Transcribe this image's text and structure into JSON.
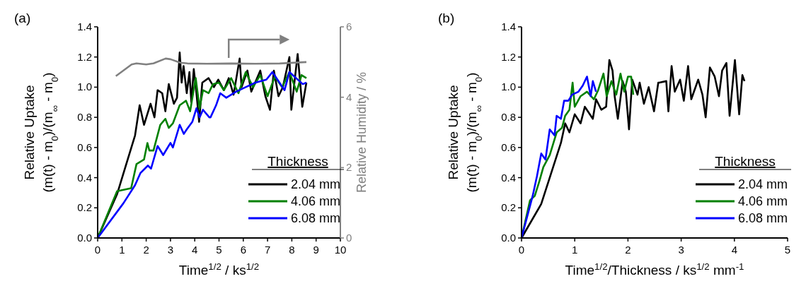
{
  "chart_data": [
    {
      "type": "line",
      "xlabel": "Time$^{1/2}$  /  ks$^{1/2}$",
      "ylabel": "Relative Uptake\n(m(t) - m$_{0}$)/(m$_{∞}$ - m$_{0}$)",
      "y2label": "Relative Humidity / %",
      "legend_title": "Thickness",
      "legend": "bottom right",
      "annotations": [
        "(a)"
      ],
      "xlim": [
        0,
        10
      ],
      "xticks": [
        0,
        1,
        2,
        3,
        4,
        5,
        6,
        7,
        8,
        9,
        10
      ],
      "ylim": [
        0,
        1.4
      ],
      "yticks": [
        {
          "value": 0,
          "label": "0.0"
        },
        {
          "value": 0.2,
          "label": "0.2"
        },
        {
          "value": 0.4,
          "label": "0.4"
        },
        {
          "value": 0.6,
          "label": "0.6"
        },
        {
          "value": 0.8,
          "label": "0.8"
        },
        {
          "value": 1,
          "label": "1.0"
        },
        {
          "value": 1.2,
          "label": "1.2"
        },
        {
          "value": 1.4,
          "label": "1.4"
        }
      ],
      "y2lim": [
        0,
        6
      ],
      "y2ticks": [
        0,
        2,
        4,
        6
      ],
      "series": [
        {
          "name": "2.04 mm",
          "color": "#000000",
          "x": [
            0,
            0.8,
            1.54,
            1.73,
            1.91,
            2.18,
            2.34,
            2.47,
            2.66,
            2.79,
            2.93,
            3.14,
            3.27,
            3.38,
            3.46,
            3.54,
            3.67,
            3.78,
            3.86,
            3.96,
            4.07,
            4.18,
            4.31,
            4.57,
            4.79,
            4.97,
            5.2,
            5.4,
            5.6,
            5.85,
            5.93,
            6.17,
            6.33,
            6.7,
            6.91,
            7.1,
            7.26,
            7.45,
            7.63,
            7.9,
            7.98,
            8.24,
            8.43,
            8.6
          ],
          "values": [
            0,
            0.29,
            0.68,
            0.88,
            0.75,
            0.89,
            0.8,
            0.98,
            0.96,
            0.84,
            1.02,
            0.89,
            0.93,
            1.23,
            1.03,
            1.14,
            0.96,
            1.1,
            0.9,
            1.12,
            0.96,
            0.77,
            1.03,
            1.06,
            1,
            1.05,
            0.98,
            1.06,
            0.95,
            1.19,
            1,
            1.11,
            0.97,
            1.11,
            0.94,
            0.85,
            1.11,
            0.94,
            1,
            1.2,
            0.85,
            1.22,
            0.87,
            1.03
          ]
        },
        {
          "name": "4.06 mm",
          "color": "#008000",
          "x": [
            0,
            0.8,
            1.38,
            1.6,
            1.91,
            2.05,
            2.13,
            2.3,
            2.58,
            2.79,
            2.93,
            3.1,
            3.38,
            3.64,
            3.81,
            4.04,
            4.2,
            4.34,
            4.57,
            4.75,
            5,
            5.2,
            5.5,
            5.8,
            6.1,
            6.4,
            6.7,
            7,
            7.3,
            7.6,
            7.9,
            8.2,
            8.4,
            8.6
          ],
          "values": [
            0,
            0.31,
            0.33,
            0.49,
            0.52,
            0.63,
            0.58,
            0.58,
            0.75,
            0.79,
            0.73,
            0.76,
            0.88,
            0.91,
            0.84,
            1.06,
            0.86,
            0.98,
            0.96,
            1.02,
            1.03,
            0.98,
            1.06,
            0.96,
            1.1,
            1,
            1.08,
            0.94,
            1.07,
            1,
            1.1,
            0.97,
            1.08,
            1.06
          ]
        },
        {
          "name": "6.08 mm",
          "color": "#0000ff",
          "x": [
            0,
            1.06,
            1.54,
            1.76,
            2.07,
            2.2,
            2.47,
            2.7,
            3,
            3.1,
            3.38,
            3.55,
            3.67,
            3.9,
            4.07,
            4.2,
            4.34,
            4.6,
            4.65,
            4.88,
            5.05,
            5.3,
            5.7,
            6.1,
            6.5,
            6.95,
            7.2,
            7.7,
            7.9,
            8.45,
            8.6
          ],
          "values": [
            0,
            0.23,
            0.35,
            0.43,
            0.48,
            0.46,
            0.61,
            0.55,
            0.63,
            0.6,
            0.75,
            0.69,
            0.72,
            0.77,
            0.86,
            0.8,
            0.85,
            0.8,
            0.8,
            0.88,
            0.96,
            0.93,
            0.97,
            1,
            1.03,
            1.05,
            1.1,
            0.98,
            1.1,
            1.02,
            1.03
          ]
        },
        {
          "color": "#808080",
          "axis": "y2",
          "x": [
            0.75,
            1.4,
            1.6,
            2,
            2.3,
            2.8,
            3,
            3.4,
            3.7,
            4.5,
            5.5,
            6.5,
            7.5,
            8.6
          ],
          "values": [
            4.6,
            4.93,
            4.96,
            4.93,
            4.96,
            5.1,
            5.08,
            4.98,
            4.96,
            4.95,
            4.96,
            4.95,
            4.96,
            5
          ]
        }
      ]
    },
    {
      "type": "line",
      "xlabel": "Time$^{1/2}$/Thickness  /  ks$^{1/2}$ mm$^{-1}$",
      "ylabel": "Relative Uptake\n(m(t) - m$_{0}$)/(m$_{∞}$ - m$_{0}$)",
      "legend_title": "Thickness",
      "legend": "bottom right",
      "annotations": [
        "(b)"
      ],
      "xlim": [
        0,
        5
      ],
      "xticks": [
        0,
        1,
        2,
        3,
        4,
        5
      ],
      "ylim": [
        0,
        1.4
      ],
      "yticks": [
        {
          "value": 0,
          "label": "0.0"
        },
        {
          "value": 0.2,
          "label": "0.2"
        },
        {
          "value": 0.4,
          "label": "0.4"
        },
        {
          "value": 0.6,
          "label": "0.6"
        },
        {
          "value": 0.8,
          "label": "0.8"
        },
        {
          "value": 1,
          "label": "1.0"
        },
        {
          "value": 1.2,
          "label": "1.2"
        },
        {
          "value": 1.4,
          "label": "1.4"
        }
      ],
      "series": [
        {
          "name": "2.04 mm",
          "color": "#000000",
          "x": [
            0,
            0.37,
            0.74,
            0.82,
            0.9,
            1,
            1.11,
            1.19,
            1.34,
            1.4,
            1.5,
            1.59,
            1.65,
            1.71,
            1.75,
            1.81,
            1.9,
            1.96,
            2.02,
            2.08,
            2.18,
            2.22,
            2.3,
            2.39,
            2.49,
            2.57,
            2.59,
            2.72,
            2.76,
            2.82,
            2.88,
            2.98,
            3.05,
            3.13,
            3.19,
            3.32,
            3.4,
            3.46,
            3.54,
            3.63,
            3.71,
            3.77,
            3.85,
            3.91,
            4.01,
            4.09,
            4.15,
            4.19
          ],
          "values": [
            0,
            0.225,
            0.63,
            0.76,
            0.7,
            0.82,
            0.76,
            0.87,
            0.79,
            0.92,
            0.85,
            0.87,
            1.18,
            1.11,
            0.94,
            0.79,
            1.04,
            0.97,
            0.72,
            1.05,
            0.95,
            1.03,
            0.89,
            1,
            0.84,
            1.03,
            1.03,
            1.04,
            0.84,
            1.14,
            0.97,
            1.05,
            0.91,
            1.14,
            0.92,
            1.05,
            0.95,
            0.8,
            1.13,
            1.07,
            0.94,
            1.11,
            1.16,
            0.81,
            1.18,
            0.82,
            1.08,
            1.04
          ]
        },
        {
          "name": "4.06 mm",
          "color": "#008000",
          "x": [
            0,
            0.16,
            0.25,
            0.33,
            0.41,
            0.53,
            0.6,
            0.66,
            0.76,
            0.82,
            0.9,
            0.96,
            1,
            1.11,
            1.23,
            1.36,
            1.44,
            1.54,
            1.6,
            1.69,
            1.78,
            1.86,
            1.93,
            2,
            2.06,
            2.1
          ],
          "values": [
            0,
            0.25,
            0.28,
            0.37,
            0.47,
            0.55,
            0.63,
            0.7,
            0.73,
            0.81,
            0.85,
            1.03,
            0.87,
            0.94,
            0.97,
            0.92,
            0.98,
            1.09,
            0.94,
            1.04,
            0.95,
            1.09,
            0.97,
            1.07,
            1.07,
            0.95
          ]
        },
        {
          "name": "6.08 mm",
          "color": "#0000ff",
          "x": [
            0,
            0.21,
            0.29,
            0.37,
            0.45,
            0.53,
            0.62,
            0.66,
            0.74,
            0.8,
            0.88,
            0.95,
            1.07,
            1.15,
            1.23,
            1.3,
            1.34,
            1.4
          ],
          "values": [
            0,
            0.28,
            0.41,
            0.56,
            0.52,
            0.72,
            0.68,
            0.81,
            0.79,
            0.91,
            0.91,
            0.95,
            0.97,
            1.01,
            1.07,
            0.94,
            1.04,
            0.97
          ]
        }
      ]
    }
  ]
}
